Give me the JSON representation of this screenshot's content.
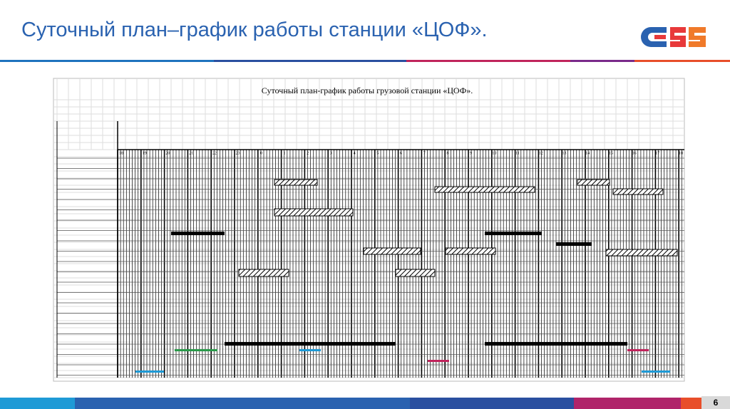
{
  "header": {
    "title": "Суточный план–график работы станции «ЦОФ»."
  },
  "figure": {
    "title": "Суточный план-график работы грузовой станции «ЦОФ».",
    "hours": [
      "18",
      "19",
      "20",
      "21",
      "22",
      "23",
      "0",
      "1",
      "2",
      "3",
      "4",
      "5",
      "6",
      "7",
      "8",
      "9",
      "10",
      "11",
      "12",
      "13",
      "14",
      "15",
      "16",
      "17",
      "18"
    ]
  },
  "page_number": "6"
}
